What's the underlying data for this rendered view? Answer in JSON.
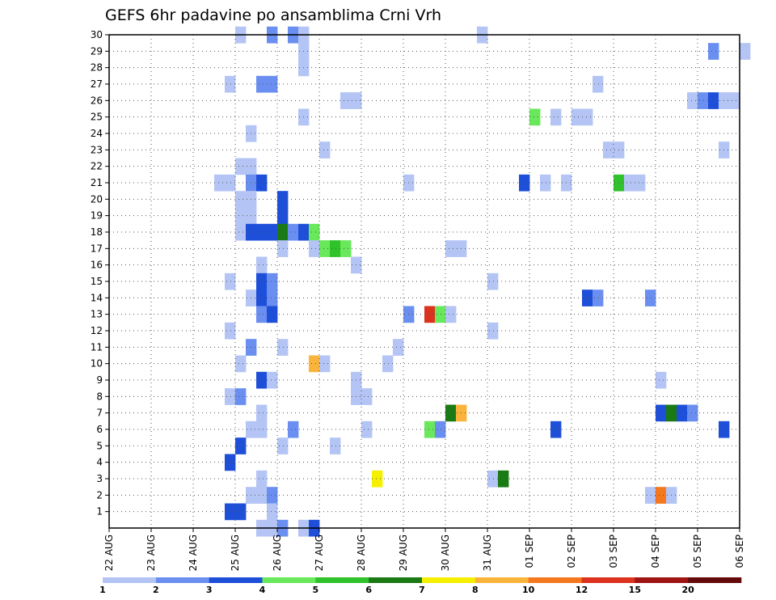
{
  "chart_data": {
    "type": "heatmap",
    "title": "GEFS 6hr padavine po ansamblima Crni Vrh",
    "xlabel": "",
    "ylabel": "",
    "x_tick_labels": [
      "22 AUG",
      "23 AUG",
      "24 AUG",
      "25 AUG",
      "26 AUG",
      "27 AUG",
      "28 AUG",
      "29 AUG",
      "30 AUG",
      "31 AUG",
      "01 SEP",
      "02 SEP",
      "03 SEP",
      "04 SEP",
      "05 SEP",
      "06 SEP"
    ],
    "x_range_days": [
      0,
      15
    ],
    "y_ticks": [
      1,
      2,
      3,
      4,
      5,
      6,
      7,
      8,
      9,
      10,
      11,
      12,
      13,
      14,
      15,
      16,
      17,
      18,
      19,
      20,
      21,
      22,
      23,
      24,
      25,
      26,
      27,
      28,
      29,
      30
    ],
    "y_range": [
      0,
      30
    ],
    "grid": true,
    "colorbar": {
      "levels": [
        "1",
        "2",
        "3",
        "4",
        "5",
        "6",
        "7",
        "8",
        "10",
        "12",
        "15",
        "20"
      ],
      "colors": [
        "#b4c5f5",
        "#6a8ff0",
        "#1e4fd8",
        "#68e85a",
        "#2fc22b",
        "#1a7a14",
        "#f5f000",
        "#fab43c",
        "#f5781e",
        "#dc321e",
        "#a01414",
        "#640a0a"
      ]
    },
    "cells_description": "member, forecast step (6h from 22 AUG 00Z), color class index 0..11",
    "cells": [
      [
        30,
        12,
        0
      ],
      [
        30,
        15,
        1
      ],
      [
        30,
        17,
        1
      ],
      [
        30,
        18,
        0
      ],
      [
        30,
        35,
        0
      ],
      [
        29,
        18,
        0
      ],
      [
        29,
        57,
        1
      ],
      [
        29,
        60,
        0
      ],
      [
        28,
        18,
        0
      ],
      [
        27,
        11,
        0
      ],
      [
        27,
        14,
        1
      ],
      [
        27,
        15,
        1
      ],
      [
        27,
        46,
        0
      ],
      [
        26,
        22,
        0
      ],
      [
        26,
        23,
        0
      ],
      [
        26,
        55,
        0
      ],
      [
        26,
        56,
        1
      ],
      [
        26,
        57,
        2
      ],
      [
        26,
        58,
        0
      ],
      [
        26,
        59,
        0
      ],
      [
        25,
        18,
        0
      ],
      [
        25,
        40,
        3
      ],
      [
        25,
        42,
        0
      ],
      [
        25,
        44,
        0
      ],
      [
        25,
        45,
        0
      ],
      [
        24,
        13,
        0
      ],
      [
        23,
        20,
        0
      ],
      [
        23,
        47,
        0
      ],
      [
        23,
        48,
        0
      ],
      [
        23,
        58,
        0
      ],
      [
        22,
        12,
        0
      ],
      [
        22,
        13,
        0
      ],
      [
        21,
        10,
        0
      ],
      [
        21,
        11,
        0
      ],
      [
        21,
        13,
        1
      ],
      [
        21,
        14,
        2
      ],
      [
        21,
        28,
        0
      ],
      [
        21,
        39,
        2
      ],
      [
        21,
        41,
        0
      ],
      [
        21,
        43,
        0
      ],
      [
        21,
        48,
        4
      ],
      [
        21,
        49,
        0
      ],
      [
        21,
        50,
        0
      ],
      [
        20,
        12,
        0
      ],
      [
        20,
        13,
        0
      ],
      [
        20,
        16,
        2
      ],
      [
        19,
        12,
        0
      ],
      [
        19,
        13,
        0
      ],
      [
        19,
        16,
        2
      ],
      [
        18,
        12,
        0
      ],
      [
        18,
        13,
        2
      ],
      [
        18,
        14,
        2
      ],
      [
        18,
        15,
        2
      ],
      [
        18,
        16,
        5
      ],
      [
        18,
        17,
        1
      ],
      [
        18,
        18,
        2
      ],
      [
        18,
        19,
        3
      ],
      [
        17,
        16,
        0
      ],
      [
        17,
        19,
        0
      ],
      [
        17,
        20,
        3
      ],
      [
        17,
        21,
        4
      ],
      [
        17,
        22,
        3
      ],
      [
        17,
        32,
        0
      ],
      [
        17,
        33,
        0
      ],
      [
        16,
        14,
        0
      ],
      [
        16,
        23,
        0
      ],
      [
        15,
        11,
        0
      ],
      [
        15,
        14,
        2
      ],
      [
        15,
        15,
        1
      ],
      [
        15,
        36,
        0
      ],
      [
        14,
        13,
        0
      ],
      [
        14,
        14,
        2
      ],
      [
        14,
        15,
        1
      ],
      [
        14,
        45,
        2
      ],
      [
        14,
        46,
        1
      ],
      [
        14,
        51,
        1
      ],
      [
        13,
        14,
        1
      ],
      [
        13,
        15,
        2
      ],
      [
        13,
        28,
        1
      ],
      [
        13,
        30,
        9
      ],
      [
        13,
        31,
        3
      ],
      [
        13,
        32,
        0
      ],
      [
        12,
        11,
        0
      ],
      [
        12,
        36,
        0
      ],
      [
        11,
        13,
        1
      ],
      [
        11,
        16,
        0
      ],
      [
        11,
        27,
        0
      ],
      [
        10,
        12,
        0
      ],
      [
        10,
        19,
        7
      ],
      [
        10,
        20,
        0
      ],
      [
        10,
        26,
        0
      ],
      [
        9,
        14,
        2
      ],
      [
        9,
        15,
        0
      ],
      [
        9,
        23,
        0
      ],
      [
        9,
        52,
        0
      ],
      [
        8,
        11,
        0
      ],
      [
        8,
        12,
        1
      ],
      [
        8,
        23,
        0
      ],
      [
        8,
        24,
        0
      ],
      [
        7,
        14,
        0
      ],
      [
        7,
        32,
        5
      ],
      [
        7,
        33,
        7
      ],
      [
        7,
        52,
        2
      ],
      [
        7,
        53,
        5
      ],
      [
        7,
        54,
        2
      ],
      [
        7,
        55,
        1
      ],
      [
        6,
        13,
        0
      ],
      [
        6,
        14,
        0
      ],
      [
        6,
        17,
        1
      ],
      [
        6,
        24,
        0
      ],
      [
        6,
        30,
        3
      ],
      [
        6,
        31,
        1
      ],
      [
        6,
        42,
        2
      ],
      [
        6,
        58,
        2
      ],
      [
        5,
        12,
        2
      ],
      [
        5,
        16,
        0
      ],
      [
        5,
        21,
        0
      ],
      [
        4,
        11,
        2
      ],
      [
        3,
        14,
        0
      ],
      [
        3,
        25,
        6
      ],
      [
        3,
        36,
        0
      ],
      [
        3,
        37,
        5
      ],
      [
        2,
        13,
        0
      ],
      [
        2,
        14,
        0
      ],
      [
        2,
        15,
        1
      ],
      [
        2,
        51,
        0
      ],
      [
        2,
        52,
        8
      ],
      [
        2,
        53,
        0
      ],
      [
        1,
        11,
        2
      ],
      [
        1,
        12,
        2
      ],
      [
        1,
        15,
        0
      ],
      [
        0,
        14,
        0
      ],
      [
        0,
        15,
        0
      ],
      [
        0,
        16,
        1
      ],
      [
        0,
        18,
        0
      ],
      [
        0,
        19,
        2
      ]
    ]
  }
}
